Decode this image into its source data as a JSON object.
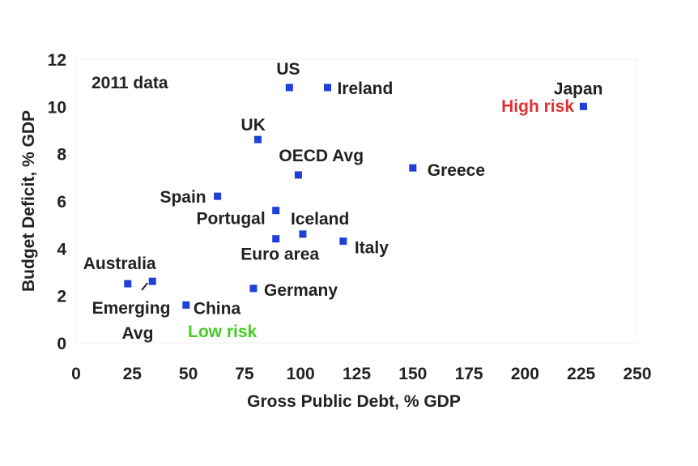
{
  "chart_data": {
    "type": "scatter",
    "xlabel": "Gross Public Debt, % GDP",
    "ylabel": "Budget Deficit, % GDP",
    "xlim": [
      0,
      250
    ],
    "ylim": [
      0,
      12
    ],
    "xticks": [
      "0",
      "25",
      "50",
      "75",
      "100",
      "125",
      "150",
      "175",
      "200",
      "225",
      "250"
    ],
    "yticks": [
      "0",
      "2",
      "4",
      "6",
      "8",
      "10",
      "12"
    ],
    "grid": false,
    "marker_color": "#1f3fd8",
    "points": [
      {
        "label": "US",
        "x": 95,
        "y": 10.8
      },
      {
        "label": "Ireland",
        "x": 112,
        "y": 10.8
      },
      {
        "label": "Japan",
        "x": 226,
        "y": 10.0
      },
      {
        "label": "UK",
        "x": 81,
        "y": 8.6
      },
      {
        "label": "OECD Avg",
        "x": 99,
        "y": 7.1
      },
      {
        "label": "Greece",
        "x": 150,
        "y": 7.4
      },
      {
        "label": "Spain",
        "x": 63,
        "y": 6.2
      },
      {
        "label": "Portugal",
        "x": 89,
        "y": 5.6
      },
      {
        "label": "Iceland",
        "x": 101,
        "y": 4.6
      },
      {
        "label": "Euro area",
        "x": 89,
        "y": 4.4
      },
      {
        "label": "Italy",
        "x": 119,
        "y": 4.3
      },
      {
        "label": "Australia",
        "x": 23,
        "y": 2.5
      },
      {
        "label": "Emerging Avg",
        "x": 34,
        "y": 2.6
      },
      {
        "label": "Germany",
        "x": 79,
        "y": 2.3
      },
      {
        "label": "China",
        "x": 49,
        "y": 1.6
      }
    ],
    "annotations": [
      {
        "text": "2011 data",
        "color": "#222222"
      },
      {
        "text": "High risk",
        "color": "#e03030"
      },
      {
        "text": "Low risk",
        "color": "#44cc22"
      }
    ]
  }
}
